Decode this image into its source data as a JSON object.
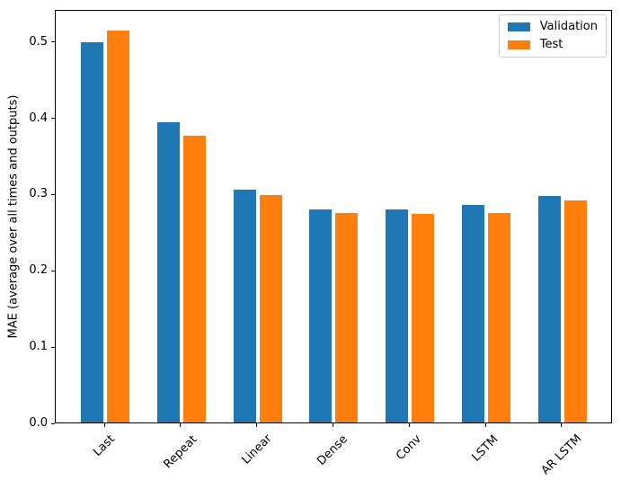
{
  "chart_data": {
    "type": "bar",
    "title": "",
    "categories": [
      "Last",
      "Repeat",
      "Linear",
      "Dense",
      "Conv",
      "LSTM",
      "AR LSTM"
    ],
    "series": [
      {
        "name": "Validation",
        "color": "#1f77b4",
        "values": [
          0.501,
          0.395,
          0.306,
          0.281,
          0.28,
          0.286,
          0.298
        ]
      },
      {
        "name": "Test",
        "color": "#ff7f0e",
        "values": [
          0.516,
          0.377,
          0.3,
          0.276,
          0.275,
          0.276,
          0.292
        ]
      }
    ],
    "xlabel": "",
    "ylabel": "MAE (average over all times and outputs)",
    "ylim": [
      0,
      0.542
    ],
    "yticks": [
      0.0,
      0.1,
      0.2,
      0.3,
      0.4,
      0.5
    ],
    "ytick_labels": [
      "0.0",
      "0.1",
      "0.2",
      "0.3",
      "0.4",
      "0.5"
    ],
    "xtick_rotation": 45,
    "grid": false,
    "legend": {
      "position": "upper right"
    }
  },
  "colors": {
    "spine": "#000000",
    "background": "#ffffff",
    "legend_border": "#cccccc",
    "validation_bar": "#1f77b4",
    "test_bar": "#ff7f0e"
  }
}
